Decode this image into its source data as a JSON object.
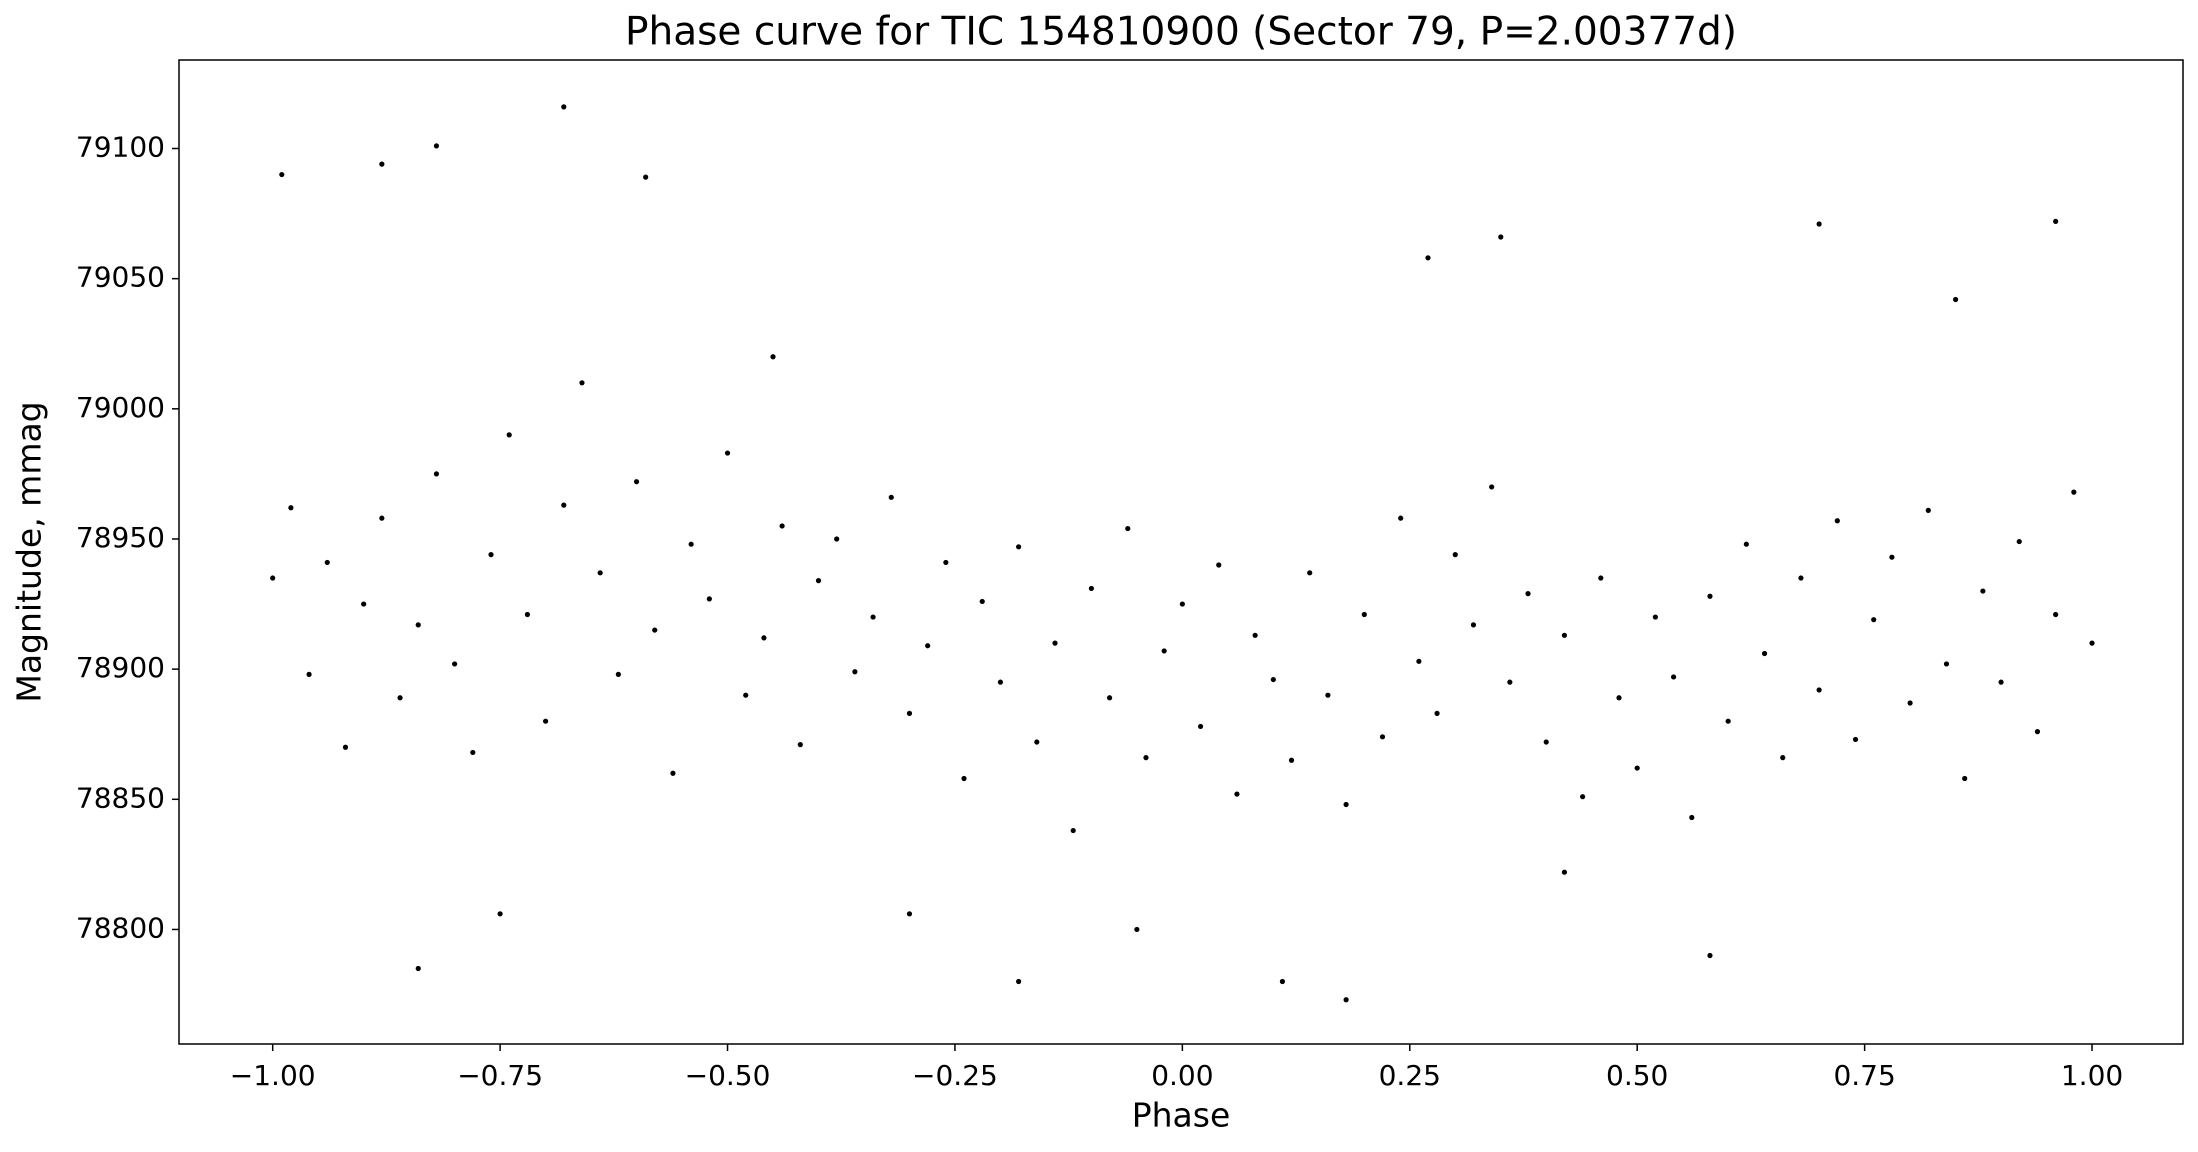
{
  "chart_data": {
    "type": "scatter",
    "title": "Phase curve for TIC 154810900 (Sector 79, P=2.00377d)",
    "x_label": "Phase",
    "y_label": "Magnitude, mmag",
    "color": "#000000",
    "xlim": [
      -1.103,
      1.1
    ],
    "ylim": [
      78756,
      79134
    ],
    "xticks": [
      {
        "value": -1,
        "label": "−1.00"
      },
      {
        "value": -0.75,
        "label": "−0.75"
      },
      {
        "value": -0.5,
        "label": "−0.50"
      },
      {
        "value": -0.25,
        "label": "−0.25"
      },
      {
        "value": 0,
        "label": "0.00"
      },
      {
        "value": 0.25,
        "label": "0.25"
      },
      {
        "value": 0.5,
        "label": "0.50"
      },
      {
        "value": 0.75,
        "label": "0.75"
      },
      {
        "value": 1,
        "label": "1.00"
      }
    ],
    "yticks": [
      78800,
      78850,
      78900,
      78950,
      79000,
      79050,
      79100
    ],
    "x": [
      -1.0,
      -0.98,
      -0.96,
      -0.94,
      -0.92,
      -0.9,
      -0.88,
      -0.86,
      -0.84,
      -0.82,
      -0.8,
      -0.78,
      -0.76,
      -0.74,
      -0.72,
      -0.7,
      -0.68,
      -0.66,
      -0.64,
      -0.62,
      -0.6,
      -0.58,
      -0.56,
      -0.54,
      -0.52,
      -0.5,
      -0.48,
      -0.46,
      -0.44,
      -0.42,
      -0.4,
      -0.38,
      -0.36,
      -0.34,
      -0.32,
      -0.3,
      -0.28,
      -0.26,
      -0.24,
      -0.22,
      -0.2,
      -0.18,
      -0.16,
      -0.14,
      -0.12,
      -0.1,
      -0.08,
      -0.06,
      -0.04,
      -0.02,
      0.0,
      0.02,
      0.04,
      0.06,
      0.08,
      0.1,
      0.12,
      0.14,
      0.16,
      0.18,
      0.2,
      0.22,
      0.24,
      0.26,
      0.28,
      0.3,
      0.32,
      0.34,
      0.36,
      0.38,
      0.4,
      0.42,
      0.44,
      0.46,
      0.48,
      0.5,
      0.52,
      0.54,
      0.56,
      0.58,
      0.6,
      0.62,
      0.64,
      0.66,
      0.68,
      0.7,
      0.72,
      0.74,
      0.76,
      0.78,
      0.8,
      0.82,
      0.84,
      0.86,
      0.88,
      0.9,
      0.92,
      0.94,
      0.96,
      0.98,
      1.0,
      -0.99,
      -0.68,
      -0.82,
      -0.88,
      -0.59,
      0.18,
      -0.84,
      0.7,
      0.96,
      0.35,
      -0.18,
      0.11,
      -0.75,
      0.42,
      -0.3,
      0.58,
      0.27,
      -0.45,
      0.85,
      -0.05
    ],
    "y": [
      78935,
      78962,
      78898,
      78941,
      78870,
      78925,
      78958,
      78889,
      78917,
      78975,
      78902,
      78868,
      78944,
      78990,
      78921,
      78880,
      78963,
      79010,
      78937,
      78898,
      78972,
      78915,
      78860,
      78948,
      78927,
      78983,
      78890,
      78912,
      78955,
      78871,
      78934,
      78950,
      78899,
      78920,
      78966,
      78883,
      78909,
      78941,
      78858,
      78926,
      78895,
      78947,
      78872,
      78910,
      78838,
      78931,
      78889,
      78954,
      78866,
      78907,
      78925,
      78878,
      78940,
      78852,
      78913,
      78896,
      78865,
      78937,
      78890,
      78848,
      78921,
      78874,
      78958,
      78903,
      78883,
      78944,
      78917,
      78970,
      78895,
      78929,
      78872,
      78913,
      78851,
      78935,
      78889,
      78862,
      78920,
      78897,
      78843,
      78928,
      78880,
      78948,
      78906,
      78866,
      78935,
      78892,
      78957,
      78873,
      78919,
      78943,
      78887,
      78961,
      78902,
      78858,
      78930,
      78895,
      78949,
      78876,
      78921,
      78968,
      78910,
      79090,
      79116,
      79101,
      79094,
      79089,
      78773,
      78785,
      79071,
      79072,
      79066,
      78780,
      78780,
      78806,
      78822,
      78806,
      78790,
      79058,
      79020,
      79042,
      78800
    ]
  }
}
